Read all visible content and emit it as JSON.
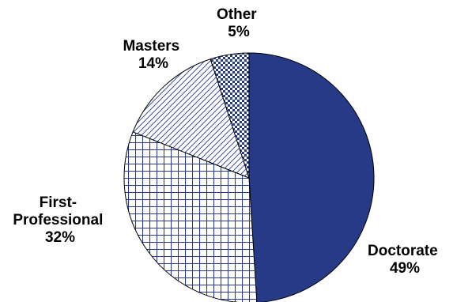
{
  "colors": {
    "navy": "#263a87",
    "outline": "#000000",
    "background": "#ffffff"
  },
  "chart_data": {
    "type": "pie",
    "start": "12 o'clock",
    "direction": "clockwise",
    "slices": [
      {
        "label": "Doctorate",
        "percent_label": "49%",
        "value": 49,
        "fill": "solid-navy"
      },
      {
        "label": "First-Professional",
        "label_lines": [
          "First-",
          "Professional"
        ],
        "percent_label": "32%",
        "value": 32,
        "fill": "grid-navy"
      },
      {
        "label": "Masters",
        "percent_label": "14%",
        "value": 14,
        "fill": "diagonal-hatch-navy"
      },
      {
        "label": "Other",
        "percent_label": "5%",
        "value": 5,
        "fill": "checker-navy"
      }
    ]
  }
}
